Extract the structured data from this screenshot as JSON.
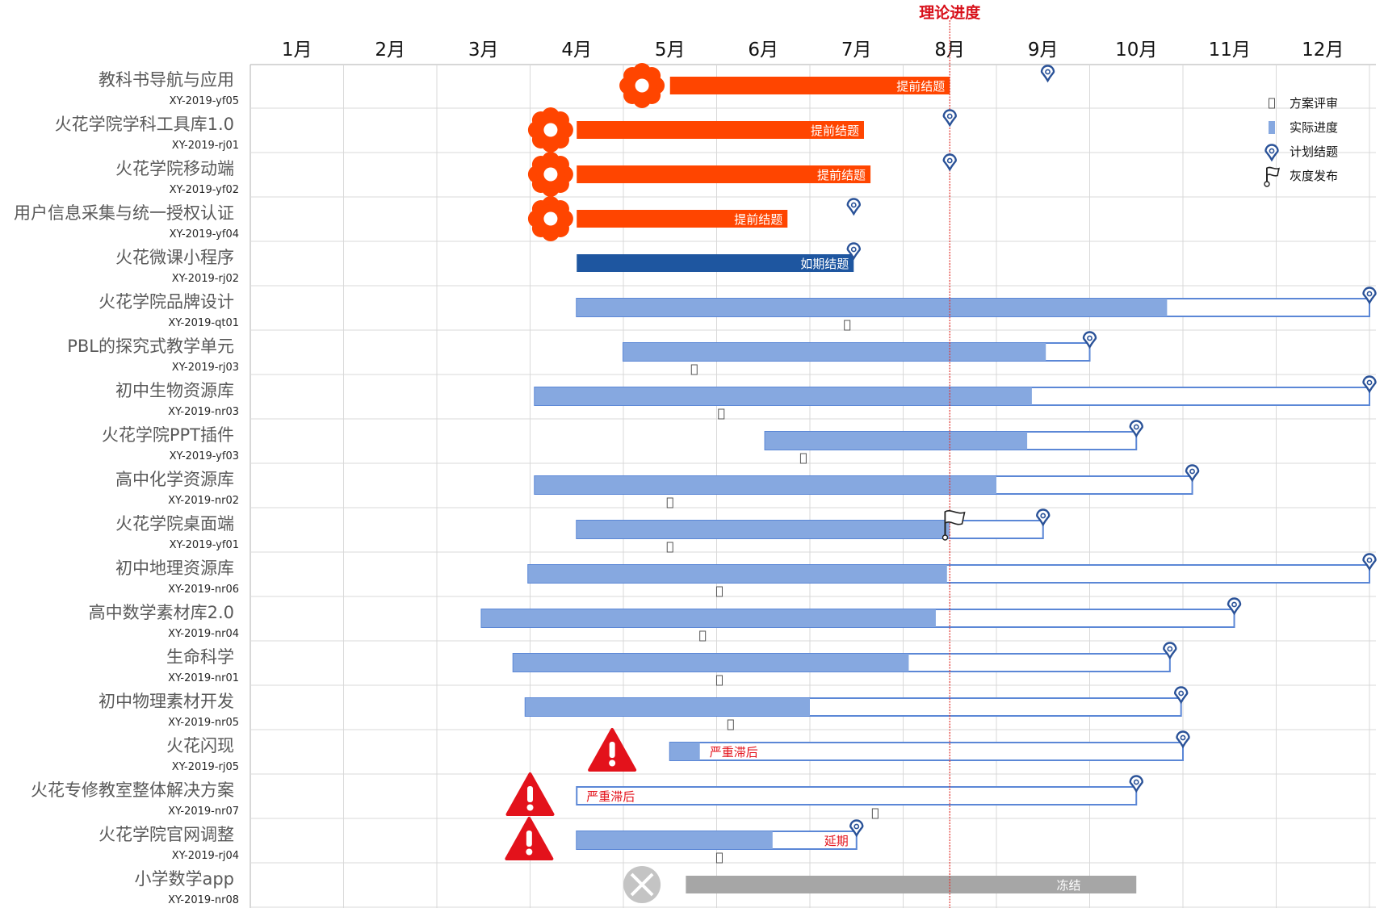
{
  "chart_data": {
    "type": "gantt",
    "today_label": "理论进度",
    "today": 7.5,
    "months": [
      "1月",
      "2月",
      "3月",
      "4月",
      "5月",
      "6月",
      "7月",
      "8月",
      "9月",
      "10月",
      "11月",
      "12月"
    ],
    "legend": [
      {
        "icon": "review-marker-icon",
        "label": "方案评审"
      },
      {
        "icon": "progress-swatch-icon",
        "label": "实际进度"
      },
      {
        "icon": "location-pin-icon",
        "label": "计划结题"
      },
      {
        "icon": "flag-icon",
        "label": "灰度发布"
      }
    ],
    "colors": {
      "early": "#ff4500",
      "ontime": "#1e56a0",
      "progress": "#86a8e0",
      "outline": "#5b87d6",
      "pin": "#2a5298",
      "today": "#e0302a",
      "warning": "#e3121b",
      "frozen": "#a6a6a6",
      "frozen_icon": "#c4c4c4",
      "grid": "#d9d9d9"
    },
    "projects": [
      {
        "name": "教科书导航与应用",
        "code": "XY-2019-yf05",
        "start": 4.5,
        "progress_end": 7.5,
        "plan_end": 8.55,
        "status": "early",
        "label": "提前结题",
        "icon": "flower-icon",
        "icon_at": 4.2
      },
      {
        "name": "火花学院学科工具库1.0",
        "code": "XY-2019-rj01",
        "start": 3.5,
        "progress_end": 6.58,
        "plan_end": 7.5,
        "status": "early",
        "label": "提前结题",
        "icon": "flower-icon",
        "icon_at": 3.22
      },
      {
        "name": "火花学院移动端",
        "code": "XY-2019-yf02",
        "start": 3.5,
        "progress_end": 6.65,
        "plan_end": 7.5,
        "status": "early",
        "label": "提前结题",
        "icon": "flower-icon",
        "icon_at": 3.22
      },
      {
        "name": "用户信息采集与统一授权认证",
        "code": "XY-2019-yf04",
        "start": 3.5,
        "progress_end": 5.76,
        "plan_end": 6.47,
        "status": "early",
        "label": "提前结题",
        "icon": "flower-icon",
        "icon_at": 3.22
      },
      {
        "name": "火花微课小程序",
        "code": "XY-2019-rj02",
        "start": 3.5,
        "progress_end": 6.47,
        "plan_end": 6.47,
        "status": "ontime",
        "label": "如期结题"
      },
      {
        "name": "火花学院品牌设计",
        "code": "XY-2019-qt01",
        "start": 3.5,
        "progress_end": 9.83,
        "plan_end": 12.0,
        "status": "normal",
        "review": 6.4
      },
      {
        "name": "PBL的探究式教学单元",
        "code": "XY-2019-rj03",
        "start": 4.0,
        "progress_end": 8.53,
        "plan_end": 9.0,
        "status": "normal",
        "review": 4.76
      },
      {
        "name": "初中生物资源库",
        "code": "XY-2019-nr03",
        "start": 3.05,
        "progress_end": 8.38,
        "plan_end": 12.0,
        "status": "normal",
        "review": 5.05
      },
      {
        "name": "火花学院PPT插件",
        "code": "XY-2019-yf03",
        "start": 5.52,
        "progress_end": 8.33,
        "plan_end": 9.5,
        "status": "normal",
        "review": 5.93
      },
      {
        "name": "高中化学资源库",
        "code": "XY-2019-nr02",
        "start": 3.05,
        "progress_end": 8.0,
        "plan_end": 10.1,
        "status": "normal",
        "review": 4.5
      },
      {
        "name": "火花学院桌面端",
        "code": "XY-2019-yf01",
        "start": 3.5,
        "progress_end": 7.5,
        "plan_end": 8.5,
        "status": "normal",
        "review": 4.5,
        "flag": 7.45
      },
      {
        "name": "初中地理资源库",
        "code": "XY-2019-nr06",
        "start": 2.98,
        "progress_end": 7.47,
        "plan_end": 12.0,
        "status": "normal",
        "review": 5.03
      },
      {
        "name": "高中数学素材库2.0",
        "code": "XY-2019-nr04",
        "start": 2.48,
        "progress_end": 7.35,
        "plan_end": 10.55,
        "status": "normal",
        "review": 4.85
      },
      {
        "name": "生命科学",
        "code": "XY-2019-nr01",
        "start": 2.82,
        "progress_end": 7.06,
        "plan_end": 9.86,
        "status": "normal",
        "review": 5.03
      },
      {
        "name": "初中物理素材开发",
        "code": "XY-2019-nr05",
        "start": 2.95,
        "progress_end": 6.0,
        "plan_end": 9.98,
        "status": "normal",
        "review": 5.15
      },
      {
        "name": "火花闪现",
        "code": "XY-2019-rj05",
        "start": 4.5,
        "progress_end": 4.82,
        "plan_end": 10.0,
        "status": "late",
        "label": "严重滞后",
        "icon": "warning-icon",
        "icon_at": 3.88
      },
      {
        "name": "火花专修教室整体解决方案",
        "code": "XY-2019-nr07",
        "start": 3.5,
        "progress_end": 3.5,
        "plan_end": 9.5,
        "status": "late",
        "label": "严重滞后",
        "icon": "warning-icon",
        "icon_at": 3.0,
        "review": 6.7
      },
      {
        "name": "火花学院官网调整",
        "code": "XY-2019-rj04",
        "start": 3.5,
        "progress_end": 5.6,
        "plan_end": 6.5,
        "status": "delayed",
        "label": "延期",
        "icon": "warning-icon",
        "icon_at": 2.99,
        "review": 5.03
      },
      {
        "name": "小学数学app",
        "code": "XY-2019-nr08",
        "start": 4.67,
        "progress_end": 9.5,
        "plan_end": 9.5,
        "status": "frozen",
        "label": "冻结",
        "icon": "frozen-icon",
        "icon_at": 4.2
      }
    ]
  }
}
